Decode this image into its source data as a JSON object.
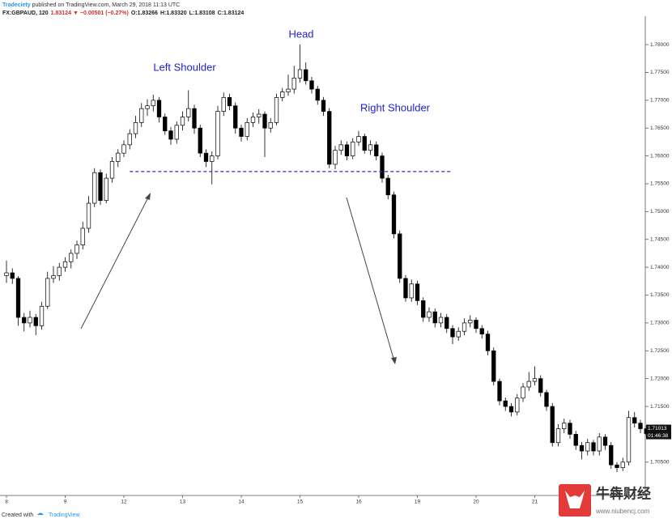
{
  "header": {
    "author": "Tradeciety",
    "published": " published on TradingView.com, March 29, 2018 11:13 UTC",
    "symbol": "FX:GBPAUD, 120",
    "last": "1.83124",
    "change": "−0.00501 (−0.27%)",
    "open": "O:1.83266",
    "high": "H:1.83320",
    "low": "L:1.83108",
    "close": "C:1.83124"
  },
  "chart_data": {
    "type": "candlestick",
    "annotations": [
      "Left Shoulder",
      "Head",
      "Right Shoulder"
    ],
    "neckline": 1.7572,
    "up_color": "#ffffff",
    "down_color": "#000000",
    "line_color": "#2b2bd6",
    "annotation_color": "#2222cc",
    "ylim": [
      1.6993,
      1.7851
    ],
    "yticks": [
      {
        "value": 1.705,
        "label": "1.70500"
      },
      {
        "value": 1.71,
        "label": "1.71000"
      },
      {
        "value": 1.715,
        "label": "1.71500"
      },
      {
        "value": 1.72,
        "label": "1.72000"
      },
      {
        "value": 1.725,
        "label": "1.72500"
      },
      {
        "value": 1.73,
        "label": "1.73000"
      },
      {
        "value": 1.735,
        "label": "1.73500"
      },
      {
        "value": 1.74,
        "label": "1.74000"
      },
      {
        "value": 1.745,
        "label": "1.74500"
      },
      {
        "value": 1.75,
        "label": "1.75000"
      },
      {
        "value": 1.755,
        "label": "1.75500"
      },
      {
        "value": 1.76,
        "label": "1.76000"
      },
      {
        "value": 1.765,
        "label": "1.76500"
      },
      {
        "value": 1.77,
        "label": "1.77000"
      },
      {
        "value": 1.775,
        "label": "1.77500"
      },
      {
        "value": 1.78,
        "label": "1.78000"
      }
    ],
    "xticks": [
      {
        "value": 0,
        "label": "8"
      },
      {
        "value": 10,
        "label": "9"
      },
      {
        "value": 20,
        "label": "12"
      },
      {
        "value": 30,
        "label": "13"
      },
      {
        "value": 40,
        "label": "14"
      },
      {
        "value": 50,
        "label": "15"
      },
      {
        "value": 60,
        "label": "16"
      },
      {
        "value": 70,
        "label": "19"
      },
      {
        "value": 80,
        "label": "20"
      },
      {
        "value": 90,
        "label": "21"
      }
    ],
    "countdown": "01:46:38",
    "candles": [
      [
        1.7385,
        1.7412,
        1.7372,
        1.739
      ],
      [
        1.739,
        1.7398,
        1.737,
        1.738
      ],
      [
        1.738,
        1.7384,
        1.7295,
        1.731
      ],
      [
        1.731,
        1.7318,
        1.7285,
        1.73
      ],
      [
        1.73,
        1.7322,
        1.7292,
        1.731
      ],
      [
        1.731,
        1.7316,
        1.7278,
        1.7295
      ],
      [
        1.7295,
        1.7338,
        1.7288,
        1.733
      ],
      [
        1.733,
        1.7392,
        1.7325,
        1.738
      ],
      [
        1.738,
        1.7402,
        1.7372,
        1.7385
      ],
      [
        1.7385,
        1.7408,
        1.7376,
        1.74
      ],
      [
        1.74,
        1.7418,
        1.7392,
        1.741
      ],
      [
        1.741,
        1.7432,
        1.7398,
        1.7425
      ],
      [
        1.7425,
        1.7448,
        1.7415,
        1.744
      ],
      [
        1.744,
        1.7482,
        1.7432,
        1.747
      ],
      [
        1.747,
        1.7528,
        1.7462,
        1.7515
      ],
      [
        1.7515,
        1.7578,
        1.7508,
        1.757
      ],
      [
        1.757,
        1.7576,
        1.7512,
        1.752
      ],
      [
        1.752,
        1.7568,
        1.7515,
        1.756
      ],
      [
        1.756,
        1.7598,
        1.7552,
        1.759
      ],
      [
        1.759,
        1.7612,
        1.758,
        1.7605
      ],
      [
        1.7605,
        1.7628,
        1.7598,
        1.762
      ],
      [
        1.762,
        1.7648,
        1.7612,
        1.764
      ],
      [
        1.764,
        1.7672,
        1.7632,
        1.766
      ],
      [
        1.766,
        1.7695,
        1.7652,
        1.7685
      ],
      [
        1.7685,
        1.7702,
        1.7672,
        1.769
      ],
      [
        1.769,
        1.771,
        1.768,
        1.77
      ],
      [
        1.77,
        1.7706,
        1.766,
        1.767
      ],
      [
        1.767,
        1.7676,
        1.7638,
        1.7645
      ],
      [
        1.7645,
        1.7652,
        1.762,
        1.763
      ],
      [
        1.763,
        1.7662,
        1.7622,
        1.7655
      ],
      [
        1.7655,
        1.768,
        1.7646,
        1.767
      ],
      [
        1.767,
        1.7718,
        1.7662,
        1.7685
      ],
      [
        1.7685,
        1.7692,
        1.764,
        1.765
      ],
      [
        1.765,
        1.7656,
        1.7598,
        1.7605
      ],
      [
        1.7605,
        1.7612,
        1.758,
        1.759
      ],
      [
        1.759,
        1.7608,
        1.7549,
        1.76
      ],
      [
        1.76,
        1.769,
        1.7594,
        1.768
      ],
      [
        1.768,
        1.7714,
        1.7672,
        1.7705
      ],
      [
        1.7705,
        1.7712,
        1.7682,
        1.769
      ],
      [
        1.769,
        1.7696,
        1.764,
        1.765
      ],
      [
        1.765,
        1.7656,
        1.7626,
        1.7635
      ],
      [
        1.7635,
        1.7668,
        1.7628,
        1.766
      ],
      [
        1.766,
        1.7678,
        1.7652,
        1.767
      ],
      [
        1.767,
        1.7684,
        1.7658,
        1.7675
      ],
      [
        1.7675,
        1.768,
        1.7598,
        1.765
      ],
      [
        1.765,
        1.7668,
        1.7642,
        1.766
      ],
      [
        1.766,
        1.7712,
        1.7655,
        1.7705
      ],
      [
        1.7705,
        1.7722,
        1.7698,
        1.7715
      ],
      [
        1.7715,
        1.7746,
        1.7708,
        1.772
      ],
      [
        1.772,
        1.7762,
        1.7712,
        1.774
      ],
      [
        1.774,
        1.78,
        1.7732,
        1.7755
      ],
      [
        1.7755,
        1.7768,
        1.7728,
        1.7735
      ],
      [
        1.7735,
        1.7742,
        1.7712,
        1.772
      ],
      [
        1.772,
        1.7726,
        1.7692,
        1.77
      ],
      [
        1.77,
        1.7706,
        1.7672,
        1.768
      ],
      [
        1.768,
        1.7686,
        1.7578,
        1.7585
      ],
      [
        1.7585,
        1.7618,
        1.7576,
        1.761
      ],
      [
        1.761,
        1.7628,
        1.7602,
        1.762
      ],
      [
        1.762,
        1.7626,
        1.7592,
        1.76
      ],
      [
        1.76,
        1.7632,
        1.7594,
        1.7625
      ],
      [
        1.7625,
        1.7645,
        1.7618,
        1.7635
      ],
      [
        1.7635,
        1.764,
        1.7604,
        1.761
      ],
      [
        1.761,
        1.7628,
        1.7602,
        1.762
      ],
      [
        1.762,
        1.7626,
        1.7592,
        1.76
      ],
      [
        1.76,
        1.7606,
        1.7552,
        1.756
      ],
      [
        1.756,
        1.7566,
        1.7522,
        1.753
      ],
      [
        1.753,
        1.7536,
        1.7452,
        1.746
      ],
      [
        1.746,
        1.7466,
        1.7372,
        1.738
      ],
      [
        1.738,
        1.7386,
        1.7338,
        1.7345
      ],
      [
        1.7345,
        1.7378,
        1.7338,
        1.737
      ],
      [
        1.737,
        1.7376,
        1.7332,
        1.734
      ],
      [
        1.734,
        1.7346,
        1.7302,
        1.731
      ],
      [
        1.731,
        1.7328,
        1.7302,
        1.732
      ],
      [
        1.732,
        1.7326,
        1.7292,
        1.73
      ],
      [
        1.73,
        1.7318,
        1.7292,
        1.731
      ],
      [
        1.731,
        1.7316,
        1.7282,
        1.729
      ],
      [
        1.729,
        1.7296,
        1.7262,
        1.7275
      ],
      [
        1.7275,
        1.7292,
        1.7268,
        1.7285
      ],
      [
        1.7285,
        1.7308,
        1.7278,
        1.73
      ],
      [
        1.73,
        1.7314,
        1.7292,
        1.7305
      ],
      [
        1.7305,
        1.731,
        1.7282,
        1.729
      ],
      [
        1.729,
        1.7296,
        1.7272,
        1.728
      ],
      [
        1.728,
        1.7286,
        1.7242,
        1.725
      ],
      [
        1.725,
        1.7256,
        1.7188,
        1.7195
      ],
      [
        1.7195,
        1.72,
        1.7152,
        1.716
      ],
      [
        1.716,
        1.7166,
        1.7142,
        1.715
      ],
      [
        1.715,
        1.7156,
        1.7132,
        1.714
      ],
      [
        1.714,
        1.7172,
        1.7134,
        1.7165
      ],
      [
        1.7165,
        1.7192,
        1.7158,
        1.7185
      ],
      [
        1.7185,
        1.7212,
        1.7178,
        1.7195
      ],
      [
        1.7195,
        1.7222,
        1.7188,
        1.72
      ],
      [
        1.72,
        1.7206,
        1.7168,
        1.7175
      ],
      [
        1.7175,
        1.718,
        1.7142,
        1.715
      ],
      [
        1.715,
        1.7156,
        1.7078,
        1.7085
      ],
      [
        1.7085,
        1.7118,
        1.7078,
        1.711
      ],
      [
        1.711,
        1.7128,
        1.7102,
        1.712
      ],
      [
        1.712,
        1.7126,
        1.7092,
        1.71
      ],
      [
        1.71,
        1.7106,
        1.7072,
        1.708
      ],
      [
        1.708,
        1.7086,
        1.7055,
        1.707
      ],
      [
        1.707,
        1.7092,
        1.7062,
        1.7085
      ],
      [
        1.7085,
        1.709,
        1.7062,
        1.707
      ],
      [
        1.707,
        1.7102,
        1.7062,
        1.7095
      ],
      [
        1.7095,
        1.71,
        1.7072,
        1.708
      ],
      [
        1.708,
        1.7086,
        1.7038,
        1.7045
      ],
      [
        1.7045,
        1.705,
        1.7032,
        1.704
      ],
      [
        1.704,
        1.7058,
        1.7034,
        1.705
      ],
      [
        1.705,
        1.7142,
        1.7044,
        1.713
      ],
      [
        1.713,
        1.714,
        1.7112,
        1.712
      ],
      [
        1.712,
        1.7126,
        1.7102,
        1.711
      ],
      [
        1.711,
        1.7116,
        1.7095,
        1.71013
      ]
    ]
  },
  "footer": {
    "created": "Created with",
    "brand": "TradingView"
  },
  "watermark": {
    "name": "牛犇财经",
    "url": "www.niubencj.com"
  }
}
